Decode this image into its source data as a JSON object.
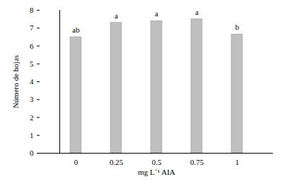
{
  "chart_data": {
    "type": "bar",
    "x_label": "mg L⁻¹ AIA",
    "y_label": "Número de hojas",
    "categories": [
      "0",
      "0.25",
      "0.5",
      "0.75",
      "1"
    ],
    "values": [
      6.5,
      7.3,
      7.4,
      7.5,
      6.65
    ],
    "annotations": [
      "ab",
      "a",
      "a",
      "a",
      "b"
    ],
    "color": "#bfbfbf",
    "ylim": [
      0,
      8
    ],
    "yticks": [
      0,
      1,
      2,
      3,
      4,
      5,
      6,
      7,
      8
    ],
    "grid": false
  }
}
